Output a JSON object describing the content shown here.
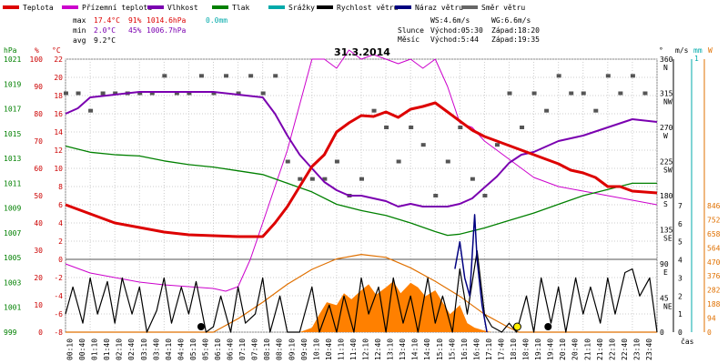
{
  "chart_data": {
    "type": "line",
    "title": "31.3.2014",
    "x_label": "čas",
    "x_ticks": [
      "00:10",
      "00:40",
      "01:10",
      "01:40",
      "02:10",
      "02:40",
      "03:10",
      "03:40",
      "04:10",
      "04:40",
      "05:10",
      "05:40",
      "06:10",
      "06:40",
      "07:10",
      "07:40",
      "08:10",
      "08:40",
      "09:10",
      "09:40",
      "10:10",
      "10:40",
      "11:10",
      "11:40",
      "12:10",
      "12:40",
      "13:10",
      "13:40",
      "14:10",
      "14:40",
      "15:10",
      "15:40",
      "16:10",
      "16:40",
      "17:10",
      "17:40",
      "18:10",
      "18:40",
      "19:10",
      "19:40",
      "20:10",
      "20:40",
      "21:10",
      "21:40",
      "22:10",
      "22:40",
      "23:10",
      "23:40"
    ],
    "axes": {
      "hpa": {
        "label": "hPa",
        "ticks": [
          "1021",
          "1019",
          "1017",
          "1015",
          "1013",
          "1011",
          "1009",
          "1007",
          "1005",
          "1003",
          "1001",
          "999"
        ],
        "color": "#008000"
      },
      "percent": {
        "label": "%",
        "ticks": [
          "100",
          "90",
          "80",
          "70",
          "60",
          "50",
          "40",
          "30",
          "20",
          "10",
          "0"
        ],
        "color": "#cc0000"
      },
      "temp": {
        "label": "°C",
        "ticks": [
          "22",
          "20",
          "18",
          "16",
          "14",
          "12",
          "10",
          "8",
          "6",
          "4",
          "2",
          "0",
          "-2",
          "-4",
          "-6",
          "-8"
        ],
        "color": "#cc0000"
      },
      "dir": {
        "label": "°",
        "ticks": [
          "360",
          "315",
          "270",
          "225",
          "180",
          "135",
          "90",
          "45",
          "0"
        ],
        "names": [
          "N",
          "NW",
          "W",
          "SW",
          "S",
          "SE",
          "E",
          "NE"
        ]
      },
      "wind": {
        "label": "m/s",
        "ticks": [
          "7",
          "6",
          "5",
          "4",
          "3",
          "2",
          "1",
          "0"
        ]
      },
      "rain": {
        "label": "mm",
        "ticks": [
          "1"
        ],
        "color": "#00aaaa"
      },
      "solar": {
        "label": "W",
        "ticks": [
          "846",
          "752",
          "658",
          "564",
          "470",
          "376",
          "282",
          "188",
          "94",
          "0"
        ],
        "color": "#e07000"
      }
    },
    "legend": [
      {
        "name": "Teplota",
        "color": "#dd0000"
      },
      {
        "name": "Přízemní teplota",
        "color": "#cc00cc"
      },
      {
        "name": "Vlhkost",
        "color": "#7a00b0"
      },
      {
        "name": "Tlak",
        "color": "#008000"
      },
      {
        "name": "Srážky",
        "color": "#00aaaa"
      },
      {
        "name": "Rychlost větru",
        "color": "#000000"
      },
      {
        "name": "Náraz větru",
        "color": "#000080"
      },
      {
        "name": "Směr větru",
        "color": "#666666"
      }
    ],
    "stats": {
      "max_label": "max",
      "min_label": "min",
      "avg_label": "avg",
      "max_temp": "17.4°C",
      "max_hum": "91%",
      "max_press": "1014.6hPa",
      "max_rain": "0.0mm",
      "min_temp": "2.0°C",
      "min_hum": "45%",
      "min_press": "1006.7hPa",
      "avg_temp": "9.2°C",
      "ws": "WS:4.6m/s",
      "wg": "WG:6.6m/s",
      "sun_label": "Slunce",
      "sunrise": "Východ:05:30",
      "sunset": "Západ:18:20",
      "moon_label": "Měsíc",
      "moonrise": "Východ:5:44",
      "moonset": "Západ:19:35"
    },
    "series": {
      "temperature": [
        [
          0,
          6
        ],
        [
          1,
          5
        ],
        [
          2,
          4
        ],
        [
          3,
          3.5
        ],
        [
          4,
          3
        ],
        [
          5,
          2.7
        ],
        [
          6,
          2.6
        ],
        [
          7,
          2.5
        ],
        [
          8,
          2.5
        ],
        [
          8.5,
          4
        ],
        [
          9,
          5.8
        ],
        [
          9.5,
          8
        ],
        [
          10,
          10.2
        ],
        [
          10.5,
          11.5
        ],
        [
          11,
          14
        ],
        [
          11.5,
          15
        ],
        [
          12,
          15.8
        ],
        [
          12.5,
          15.7
        ],
        [
          13,
          16.2
        ],
        [
          13.5,
          15.6
        ],
        [
          14,
          16.5
        ],
        [
          14.5,
          16.8
        ],
        [
          15,
          17.2
        ],
        [
          15.5,
          16.2
        ],
        [
          16,
          15.2
        ],
        [
          16.5,
          14.2
        ],
        [
          17,
          13.5
        ],
        [
          17.5,
          13
        ],
        [
          18,
          12.5
        ],
        [
          18.5,
          12
        ],
        [
          19,
          11.5
        ],
        [
          19.5,
          11
        ],
        [
          20,
          10.5
        ],
        [
          20.5,
          9.8
        ],
        [
          21,
          9.5
        ],
        [
          21.5,
          9
        ],
        [
          22,
          8
        ],
        [
          22.5,
          8
        ],
        [
          23,
          7.5
        ],
        [
          24,
          7.3
        ]
      ],
      "ground_temperature": [
        [
          0,
          -0.5
        ],
        [
          1,
          -1.5
        ],
        [
          2,
          -2
        ],
        [
          3,
          -2.5
        ],
        [
          4,
          -2.8
        ],
        [
          5,
          -3
        ],
        [
          6,
          -3.2
        ],
        [
          6.5,
          -3.5
        ],
        [
          7,
          -3
        ],
        [
          7.5,
          0
        ],
        [
          8,
          4
        ],
        [
          8.5,
          8
        ],
        [
          9,
          12
        ],
        [
          9.5,
          17
        ],
        [
          10,
          22
        ],
        [
          10.5,
          22
        ],
        [
          11,
          21
        ],
        [
          11.5,
          23
        ],
        [
          12,
          22
        ],
        [
          12.5,
          22.5
        ],
        [
          13,
          22
        ],
        [
          13.5,
          21.5
        ],
        [
          14,
          22
        ],
        [
          14.5,
          21
        ],
        [
          15,
          22
        ],
        [
          15.5,
          19
        ],
        [
          16,
          15
        ],
        [
          16.5,
          14.5
        ],
        [
          17,
          13
        ],
        [
          17.5,
          12
        ],
        [
          18,
          11
        ],
        [
          18.5,
          10
        ],
        [
          19,
          9
        ],
        [
          20,
          8
        ],
        [
          21,
          7.5
        ],
        [
          22,
          7
        ],
        [
          23,
          6.5
        ],
        [
          24,
          6
        ]
      ],
      "humidity": [
        [
          0,
          80
        ],
        [
          0.5,
          82
        ],
        [
          1,
          86
        ],
        [
          2,
          87
        ],
        [
          3,
          88
        ],
        [
          4,
          88
        ],
        [
          5,
          88
        ],
        [
          6,
          88
        ],
        [
          7,
          87
        ],
        [
          8,
          86
        ],
        [
          8.5,
          80
        ],
        [
          9,
          72
        ],
        [
          9.5,
          65
        ],
        [
          10,
          60
        ],
        [
          10.5,
          55
        ],
        [
          11,
          52
        ],
        [
          11.5,
          50
        ],
        [
          12,
          50
        ],
        [
          12.5,
          49
        ],
        [
          13,
          48
        ],
        [
          13.5,
          46
        ],
        [
          14,
          47
        ],
        [
          14.5,
          46
        ],
        [
          15,
          46
        ],
        [
          15.5,
          46
        ],
        [
          16,
          47
        ],
        [
          16.5,
          49
        ],
        [
          17,
          53
        ],
        [
          17.5,
          57
        ],
        [
          18,
          62
        ],
        [
          18.5,
          65
        ],
        [
          19,
          66
        ],
        [
          19.5,
          68
        ],
        [
          20,
          70
        ],
        [
          21,
          72
        ],
        [
          22,
          75
        ],
        [
          23,
          78
        ],
        [
          24,
          77
        ]
      ],
      "pressure": [
        [
          0,
          1014
        ],
        [
          1,
          1013.5
        ],
        [
          2,
          1013.3
        ],
        [
          3,
          1013.2
        ],
        [
          4,
          1012.8
        ],
        [
          5,
          1012.5
        ],
        [
          6,
          1012.3
        ],
        [
          7,
          1012
        ],
        [
          8,
          1011.7
        ],
        [
          9,
          1011
        ],
        [
          10,
          1010.3
        ],
        [
          11,
          1009.3
        ],
        [
          12,
          1008.8
        ],
        [
          13,
          1008.4
        ],
        [
          14,
          1007.8
        ],
        [
          15,
          1007.1
        ],
        [
          15.5,
          1006.8
        ],
        [
          16,
          1006.9
        ],
        [
          17,
          1007.4
        ],
        [
          18,
          1008
        ],
        [
          19,
          1008.6
        ],
        [
          20,
          1009.3
        ],
        [
          21,
          1010
        ],
        [
          22,
          1010.5
        ],
        [
          23,
          1011
        ],
        [
          24,
          1011
        ]
      ],
      "wind_speed": [
        [
          0,
          1
        ],
        [
          0.3,
          2.5
        ],
        [
          0.7,
          0.5
        ],
        [
          1,
          3
        ],
        [
          1.3,
          1
        ],
        [
          1.7,
          2.8
        ],
        [
          2,
          0.5
        ],
        [
          2.3,
          3
        ],
        [
          2.7,
          1
        ],
        [
          3,
          2.5
        ],
        [
          3.3,
          0
        ],
        [
          3.7,
          1.2
        ],
        [
          4,
          3
        ],
        [
          4.3,
          0.5
        ],
        [
          4.7,
          2.5
        ],
        [
          5,
          1
        ],
        [
          5.3,
          2.8
        ],
        [
          5.7,
          0
        ],
        [
          6,
          0.3
        ],
        [
          6.3,
          2
        ],
        [
          6.7,
          0
        ],
        [
          7,
          2.5
        ],
        [
          7.3,
          0.5
        ],
        [
          7.7,
          1
        ],
        [
          8,
          3
        ],
        [
          8.3,
          0
        ],
        [
          8.7,
          2
        ],
        [
          9,
          0
        ],
        [
          9.5,
          0
        ],
        [
          10,
          2.5
        ],
        [
          10.3,
          0
        ],
        [
          10.7,
          1.5
        ],
        [
          11,
          0
        ],
        [
          11.3,
          2
        ],
        [
          11.7,
          0
        ],
        [
          12,
          3
        ],
        [
          12.3,
          1
        ],
        [
          12.7,
          2.5
        ],
        [
          13,
          0
        ],
        [
          13.3,
          3
        ],
        [
          13.7,
          0.5
        ],
        [
          14,
          2
        ],
        [
          14.3,
          0
        ],
        [
          14.7,
          3
        ],
        [
          15,
          0.5
        ],
        [
          15.3,
          2
        ],
        [
          15.7,
          0
        ],
        [
          16,
          3.5
        ],
        [
          16.3,
          1
        ],
        [
          16.7,
          4.5
        ],
        [
          17,
          1
        ],
        [
          17.3,
          0.3
        ],
        [
          17.7,
          0
        ],
        [
          18,
          0.5
        ],
        [
          18.3,
          0
        ],
        [
          18.7,
          2
        ],
        [
          19,
          0
        ],
        [
          19.3,
          3
        ],
        [
          19.7,
          0.5
        ],
        [
          20,
          2.5
        ],
        [
          20.3,
          0
        ],
        [
          20.7,
          3
        ],
        [
          21,
          1
        ],
        [
          21.3,
          2.5
        ],
        [
          21.7,
          0.5
        ],
        [
          22,
          3
        ],
        [
          22.3,
          1
        ],
        [
          22.7,
          3.3
        ],
        [
          23,
          3.5
        ],
        [
          23.3,
          2
        ],
        [
          23.7,
          3
        ],
        [
          24,
          0
        ]
      ],
      "wind_gust": [
        [
          15.8,
          3.5
        ],
        [
          16,
          5
        ],
        [
          16.2,
          3
        ],
        [
          16.4,
          2
        ],
        [
          16.6,
          6.5
        ],
        [
          16.7,
          4
        ],
        [
          16.9,
          1.5
        ],
        [
          17.1,
          0
        ]
      ],
      "wind_direction_deg": [
        [
          0,
          315
        ],
        [
          0.5,
          315
        ],
        [
          1,
          292
        ],
        [
          1.5,
          315
        ],
        [
          2,
          315
        ],
        [
          2.5,
          315
        ],
        [
          3,
          315
        ],
        [
          3.5,
          315
        ],
        [
          4,
          338
        ],
        [
          4.5,
          315
        ],
        [
          5,
          315
        ],
        [
          5.5,
          338
        ],
        [
          6,
          315
        ],
        [
          6.5,
          338
        ],
        [
          7,
          315
        ],
        [
          7.5,
          338
        ],
        [
          8,
          315
        ],
        [
          8.5,
          338
        ],
        [
          9,
          225
        ],
        [
          9.5,
          202
        ],
        [
          10,
          202
        ],
        [
          10.5,
          202
        ],
        [
          11,
          225
        ],
        [
          11.5,
          180
        ],
        [
          12,
          202
        ],
        [
          12.5,
          292
        ],
        [
          13,
          270
        ],
        [
          13.5,
          225
        ],
        [
          14,
          270
        ],
        [
          14.5,
          247
        ],
        [
          15,
          180
        ],
        [
          15.5,
          225
        ],
        [
          16,
          270
        ],
        [
          16.5,
          202
        ],
        [
          17,
          180
        ],
        [
          17.5,
          247
        ],
        [
          18,
          315
        ],
        [
          18.5,
          270
        ],
        [
          19,
          315
        ],
        [
          19.5,
          292
        ],
        [
          20,
          338
        ],
        [
          20.5,
          315
        ],
        [
          21,
          315
        ],
        [
          21.5,
          292
        ],
        [
          22,
          338
        ],
        [
          22.5,
          315
        ],
        [
          23,
          338
        ],
        [
          23.5,
          315
        ]
      ],
      "solar_radiation": [
        [
          0,
          0
        ],
        [
          5.5,
          0
        ],
        [
          6,
          0
        ],
        [
          7,
          90
        ],
        [
          8,
          200
        ],
        [
          9,
          320
        ],
        [
          10,
          420
        ],
        [
          11,
          490
        ],
        [
          12,
          520
        ],
        [
          13,
          500
        ],
        [
          14,
          430
        ],
        [
          15,
          340
        ],
        [
          16,
          240
        ],
        [
          17,
          120
        ],
        [
          18,
          30
        ],
        [
          18.4,
          0
        ],
        [
          24,
          0
        ]
      ],
      "solar_measured": [
        [
          0,
          0
        ],
        [
          9.5,
          0
        ],
        [
          10,
          30
        ],
        [
          10.3,
          120
        ],
        [
          10.6,
          200
        ],
        [
          11,
          180
        ],
        [
          11.3,
          260
        ],
        [
          11.6,
          220
        ],
        [
          12,
          280
        ],
        [
          12.3,
          320
        ],
        [
          12.6,
          250
        ],
        [
          13,
          300
        ],
        [
          13.3,
          340
        ],
        [
          13.6,
          260
        ],
        [
          14,
          330
        ],
        [
          14.3,
          300
        ],
        [
          14.6,
          240
        ],
        [
          15,
          280
        ],
        [
          15.3,
          200
        ],
        [
          15.6,
          120
        ],
        [
          16,
          180
        ],
        [
          16.3,
          60
        ],
        [
          16.6,
          30
        ],
        [
          17,
          10
        ],
        [
          17.3,
          0
        ],
        [
          24,
          0
        ]
      ]
    }
  }
}
